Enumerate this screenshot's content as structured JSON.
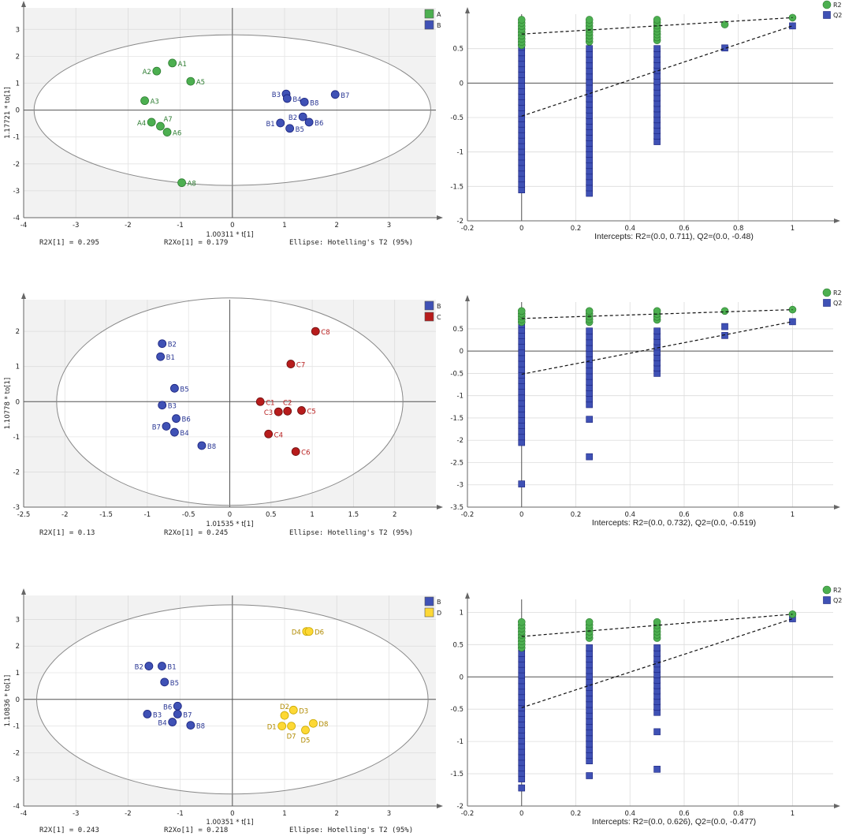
{
  "chart_data": [
    {
      "type": "scatter",
      "kind": "opls-da-score",
      "xlim": [
        -4,
        3.9
      ],
      "ylim": [
        -4,
        3.8
      ],
      "xticks": [
        -4,
        -3,
        -2,
        -1,
        0,
        1,
        2,
        3
      ],
      "yticks": [
        -4,
        -3,
        -2,
        -1,
        0,
        1,
        2,
        3
      ],
      "xlabel": "1.00311 * t[1]",
      "ylabel": "1.17721 * to[1]",
      "footer": [
        "R2X[1] = 0.295",
        "R2Xo[1] = 0.179",
        "Ellipse: Hotelling's T2 (95%)"
      ],
      "ellipse": {
        "rx": 3.8,
        "ry": 2.8
      },
      "legend": [
        {
          "name": "A",
          "color": "#4caf50"
        },
        {
          "name": "B",
          "color": "#3f51b5"
        }
      ],
      "series": [
        {
          "name": "A",
          "color": "#4caf50",
          "points": [
            {
              "label": "A1",
              "x": -1.15,
              "y": 1.75,
              "pos": "r"
            },
            {
              "label": "A2",
              "x": -1.45,
              "y": 1.45,
              "pos": "l"
            },
            {
              "label": "A5",
              "x": -0.8,
              "y": 1.07,
              "pos": "r"
            },
            {
              "label": "A3",
              "x": -1.68,
              "y": 0.35,
              "pos": "r"
            },
            {
              "label": "A7",
              "x": -1.38,
              "y": -0.6,
              "pos": "tr"
            },
            {
              "label": "A4",
              "x": -1.55,
              "y": -0.45,
              "pos": "l"
            },
            {
              "label": "A6",
              "x": -1.25,
              "y": -0.82,
              "pos": "r"
            },
            {
              "label": "A8",
              "x": -0.97,
              "y": -2.7,
              "pos": "r"
            }
          ]
        },
        {
          "name": "B",
          "color": "#3f51b5",
          "points": [
            {
              "label": "B3",
              "x": 1.03,
              "y": 0.6,
              "pos": "l"
            },
            {
              "label": "B4",
              "x": 1.05,
              "y": 0.43,
              "pos": "r"
            },
            {
              "label": "B8",
              "x": 1.38,
              "y": 0.3,
              "pos": "r"
            },
            {
              "label": "B7",
              "x": 1.97,
              "y": 0.58,
              "pos": "r"
            },
            {
              "label": "B2",
              "x": 1.35,
              "y": -0.25,
              "pos": "l"
            },
            {
              "label": "B6",
              "x": 1.47,
              "y": -0.45,
              "pos": "r"
            },
            {
              "label": "B1",
              "x": 0.92,
              "y": -0.48,
              "pos": "l"
            },
            {
              "label": "B5",
              "x": 1.1,
              "y": -0.68,
              "pos": "r"
            }
          ]
        }
      ]
    },
    {
      "type": "scatter",
      "kind": "permutation-test",
      "xlim": [
        -0.2,
        1.15
      ],
      "ylim": [
        -2,
        1
      ],
      "xticks": [
        -0.2,
        0,
        0.2,
        0.4,
        0.6,
        0.8,
        1
      ],
      "yticks": [
        -2,
        -1.5,
        -1,
        -0.5,
        0,
        0.5
      ],
      "legend": [
        {
          "name": "R2",
          "color": "#4caf50"
        },
        {
          "name": "Q2",
          "color": "#3f51b5"
        }
      ],
      "caption": "Intercepts: R2=(0.0, 0.711), Q2=(0.0, -0.48)",
      "r2_line": {
        "x": [
          0,
          1
        ],
        "y": [
          0.711,
          0.95
        ]
      },
      "q2_line": {
        "x": [
          0,
          1
        ],
        "y": [
          -0.48,
          0.83
        ]
      },
      "r2_columns": [
        {
          "x": 0,
          "min": 0.55,
          "max": 0.92
        },
        {
          "x": 0.25,
          "min": 0.6,
          "max": 0.92
        },
        {
          "x": 0.5,
          "min": 0.62,
          "max": 0.92
        }
      ],
      "q2_columns": [
        {
          "x": 0,
          "min": -1.55,
          "max": 0.6
        },
        {
          "x": 0.25,
          "min": -1.6,
          "max": 0.5
        },
        {
          "x": 0.5,
          "min": -0.85,
          "max": 0.5
        }
      ],
      "r2_points": [
        {
          "x": 0.75,
          "y": 0.85
        },
        {
          "x": 1,
          "y": 0.95
        }
      ],
      "q2_points": [
        {
          "x": 0.75,
          "y": 0.51
        },
        {
          "x": 1,
          "y": 0.83
        }
      ]
    },
    {
      "type": "scatter",
      "kind": "opls-da-score",
      "xlim": [
        -2.5,
        2.5
      ],
      "ylim": [
        -3,
        2.9
      ],
      "xticks": [
        -2.5,
        -2,
        -1.5,
        -1,
        -0.5,
        0,
        0.5,
        1,
        1.5,
        2
      ],
      "yticks": [
        -3,
        -2,
        -1,
        0,
        1,
        2
      ],
      "xlabel": "1.01535 * t[1]",
      "ylabel": "1.10778 * to[1]",
      "footer": [
        "R2X[1] = 0.13",
        "R2Xo[1] = 0.245",
        "Ellipse: Hotelling's T2 (95%)"
      ],
      "ellipse": {
        "rx": 2.1,
        "ry": 2.95
      },
      "legend": [
        {
          "name": "B",
          "color": "#3f51b5"
        },
        {
          "name": "C",
          "color": "#b71c1c"
        }
      ],
      "series": [
        {
          "name": "B",
          "color": "#3f51b5",
          "points": [
            {
              "label": "B2",
              "x": -0.82,
              "y": 1.65,
              "pos": "r"
            },
            {
              "label": "B1",
              "x": -0.84,
              "y": 1.28,
              "pos": "r"
            },
            {
              "label": "B5",
              "x": -0.67,
              "y": 0.38,
              "pos": "r"
            },
            {
              "label": "B3",
              "x": -0.82,
              "y": -0.1,
              "pos": "r"
            },
            {
              "label": "B6",
              "x": -0.65,
              "y": -0.48,
              "pos": "r"
            },
            {
              "label": "B7",
              "x": -0.77,
              "y": -0.7,
              "pos": "l"
            },
            {
              "label": "B4",
              "x": -0.67,
              "y": -0.87,
              "pos": "r"
            },
            {
              "label": "B8",
              "x": -0.34,
              "y": -1.25,
              "pos": "r"
            }
          ]
        },
        {
          "name": "C",
          "color": "#b71c1c",
          "points": [
            {
              "label": "C8",
              "x": 1.04,
              "y": 2.0,
              "pos": "r"
            },
            {
              "label": "C7",
              "x": 0.74,
              "y": 1.07,
              "pos": "r"
            },
            {
              "label": "C1",
              "x": 0.37,
              "y": 0.0,
              "pos": "r"
            },
            {
              "label": "C2",
              "x": 0.7,
              "y": -0.27,
              "pos": "t"
            },
            {
              "label": "C3",
              "x": 0.59,
              "y": -0.29,
              "pos": "l"
            },
            {
              "label": "C5",
              "x": 0.87,
              "y": -0.25,
              "pos": "r"
            },
            {
              "label": "C4",
              "x": 0.47,
              "y": -0.92,
              "pos": "r"
            },
            {
              "label": "C6",
              "x": 0.8,
              "y": -1.42,
              "pos": "r"
            }
          ]
        }
      ]
    },
    {
      "type": "scatter",
      "kind": "permutation-test",
      "xlim": [
        -0.2,
        1.15
      ],
      "ylim": [
        -3.5,
        1.1
      ],
      "xticks": [
        -0.2,
        0,
        0.2,
        0.4,
        0.6,
        0.8,
        1
      ],
      "yticks": [
        -3.5,
        -3,
        -2.5,
        -2,
        -1.5,
        -1,
        -0.5,
        0,
        0.5
      ],
      "legend": [
        {
          "name": "R2",
          "color": "#4caf50"
        },
        {
          "name": "Q2",
          "color": "#3f51b5"
        }
      ],
      "caption": "Intercepts: R2=(0.0, 0.732), Q2=(0.0, -0.519)",
      "r2_line": {
        "x": [
          0,
          1
        ],
        "y": [
          0.732,
          0.93
        ]
      },
      "q2_line": {
        "x": [
          0,
          1
        ],
        "y": [
          -0.519,
          0.66
        ]
      },
      "r2_columns": [
        {
          "x": 0,
          "min": 0.65,
          "max": 0.9
        },
        {
          "x": 0.25,
          "min": 0.65,
          "max": 0.9
        },
        {
          "x": 0.5,
          "min": 0.7,
          "max": 0.9
        }
      ],
      "q2_columns": [
        {
          "x": 0,
          "min": -2.05,
          "max": 0.6
        },
        {
          "x": 0.25,
          "min": -1.2,
          "max": 0.45
        },
        {
          "x": 0.5,
          "min": -0.5,
          "max": 0.45
        }
      ],
      "r2_points": [
        {
          "x": 0.75,
          "y": 0.9
        },
        {
          "x": 1,
          "y": 0.93
        }
      ],
      "q2_points": [
        {
          "x": 0,
          "y": -2.98
        },
        {
          "x": 0.25,
          "y": -1.53
        },
        {
          "x": 0.25,
          "y": -2.37
        },
        {
          "x": 0.75,
          "y": 0.55
        },
        {
          "x": 0.75,
          "y": 0.35
        },
        {
          "x": 1,
          "y": 0.66
        }
      ]
    },
    {
      "type": "scatter",
      "kind": "opls-da-score",
      "xlim": [
        -4,
        3.9
      ],
      "ylim": [
        -4,
        3.9
      ],
      "xticks": [
        -4,
        -3,
        -2,
        -1,
        0,
        1,
        2,
        3
      ],
      "yticks": [
        -4,
        -3,
        -2,
        -1,
        0,
        1,
        2,
        3
      ],
      "xlabel": "1.00351 * t[1]",
      "ylabel": "1.10836 * to[1]",
      "footer": [
        "R2X[1] = 0.243",
        "R2Xo[1] = 0.218",
        "Ellipse: Hotelling's T2 (95%)"
      ],
      "ellipse": {
        "rx": 3.75,
        "ry": 3.55
      },
      "legend": [
        {
          "name": "B",
          "color": "#3f51b5"
        },
        {
          "name": "D",
          "color": "#fdd835"
        }
      ],
      "series": [
        {
          "name": "B",
          "color": "#3f51b5",
          "points": [
            {
              "label": "B2",
              "x": -1.6,
              "y": 1.25,
              "pos": "l"
            },
            {
              "label": "B1",
              "x": -1.35,
              "y": 1.25,
              "pos": "r"
            },
            {
              "label": "B5",
              "x": -1.3,
              "y": 0.65,
              "pos": "r"
            },
            {
              "label": "B6",
              "x": -1.05,
              "y": -0.25,
              "pos": "l"
            },
            {
              "label": "B3",
              "x": -1.63,
              "y": -0.55,
              "pos": "r"
            },
            {
              "label": "B7",
              "x": -1.05,
              "y": -0.55,
              "pos": "r"
            },
            {
              "label": "B4",
              "x": -1.15,
              "y": -0.85,
              "pos": "l"
            },
            {
              "label": "B8",
              "x": -0.8,
              "y": -0.97,
              "pos": "r"
            }
          ]
        },
        {
          "name": "D",
          "color": "#fdd835",
          "points": [
            {
              "label": "D4",
              "x": 1.42,
              "y": 2.55,
              "pos": "l"
            },
            {
              "label": "D6",
              "x": 1.47,
              "y": 2.55,
              "pos": "r"
            },
            {
              "label": "D2",
              "x": 1.0,
              "y": -0.6,
              "pos": "t"
            },
            {
              "label": "D3",
              "x": 1.17,
              "y": -0.4,
              "pos": "r"
            },
            {
              "label": "D1",
              "x": 0.95,
              "y": -1.0,
              "pos": "l"
            },
            {
              "label": "D7",
              "x": 1.13,
              "y": -1.0,
              "pos": "b"
            },
            {
              "label": "D8",
              "x": 1.55,
              "y": -0.9,
              "pos": "r"
            },
            {
              "label": "D5",
              "x": 1.4,
              "y": -1.15,
              "pos": "b"
            }
          ]
        }
      ]
    },
    {
      "type": "scatter",
      "kind": "permutation-test",
      "xlim": [
        -0.2,
        1.15
      ],
      "ylim": [
        -2,
        1.2
      ],
      "xticks": [
        -0.2,
        0,
        0.2,
        0.4,
        0.6,
        0.8,
        1
      ],
      "yticks": [
        -2,
        -1.5,
        -1,
        -0.5,
        0,
        0.5,
        1
      ],
      "legend": [
        {
          "name": "R2",
          "color": "#4caf50"
        },
        {
          "name": "Q2",
          "color": "#3f51b5"
        }
      ],
      "caption": "Intercepts: R2=(0.0, 0.626), Q2=(0.0, -0.477)",
      "r2_line": {
        "x": [
          0,
          1
        ],
        "y": [
          0.626,
          0.97
        ]
      },
      "q2_line": {
        "x": [
          0,
          1
        ],
        "y": [
          -0.477,
          0.9
        ]
      },
      "r2_columns": [
        {
          "x": 0,
          "min": 0.45,
          "max": 0.85
        },
        {
          "x": 0.25,
          "min": 0.6,
          "max": 0.85
        },
        {
          "x": 0.5,
          "min": 0.6,
          "max": 0.85
        }
      ],
      "q2_columns": [
        {
          "x": 0,
          "min": -1.58,
          "max": 0.45
        },
        {
          "x": 0.25,
          "min": -1.3,
          "max": 0.45
        },
        {
          "x": 0.5,
          "min": -0.55,
          "max": 0.45
        }
      ],
      "r2_points": [
        {
          "x": 1,
          "y": 0.97
        }
      ],
      "q2_points": [
        {
          "x": 0,
          "y": -1.72
        },
        {
          "x": 0.25,
          "y": -1.53
        },
        {
          "x": 0.5,
          "y": -0.85
        },
        {
          "x": 0.5,
          "y": -1.43
        },
        {
          "x": 1,
          "y": 0.9
        }
      ]
    }
  ]
}
